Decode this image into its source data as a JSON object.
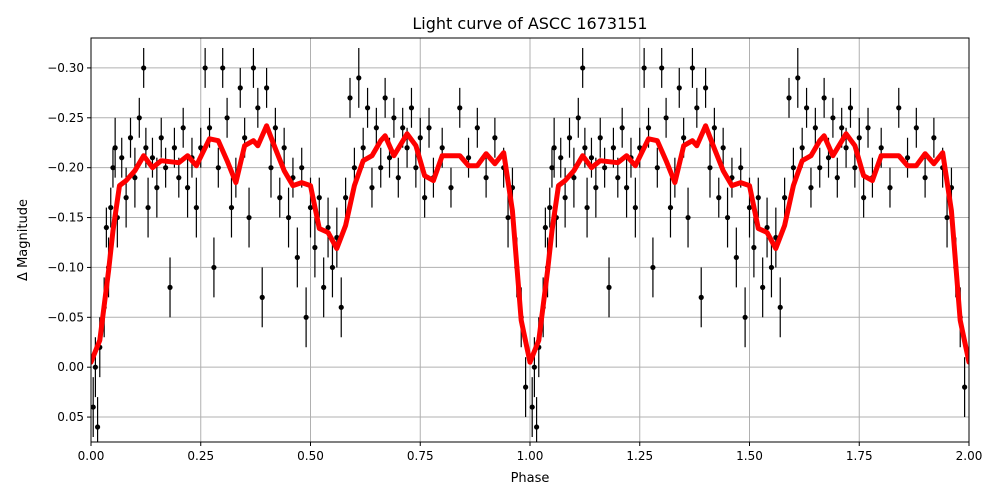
{
  "chart_data": {
    "type": "scatter",
    "title": "Light curve of ASCC 1673151",
    "xlabel": "Phase",
    "ylabel": "Δ Magnitude",
    "xlim": [
      0,
      2
    ],
    "ylim": [
      0.075,
      -0.33
    ],
    "y_inverted": true,
    "grid": true,
    "xticks": [
      0,
      0.25,
      0.5,
      0.75,
      1.0,
      1.25,
      1.5,
      1.75,
      2.0
    ],
    "xtick_labels": [
      "0.00",
      "0.25",
      "0.50",
      "0.75",
      "1.00",
      "1.25",
      "1.50",
      "1.75",
      "2.00"
    ],
    "yticks": [
      -0.3,
      -0.25,
      -0.2,
      -0.15,
      -0.1,
      -0.05,
      0.0,
      0.05
    ],
    "ytick_labels": [
      "−0.30",
      "−0.25",
      "−0.20",
      "−0.15",
      "−0.10",
      "−0.05",
      "0.00",
      "0.05"
    ],
    "colors": {
      "points": "#000000",
      "model": "#ff0000",
      "grid": "#b0b0b0"
    },
    "phase_repeated_over": [
      0,
      2
    ],
    "series": [
      {
        "kind": "errorbar-points",
        "points": [
          [
            0.005,
            0.04,
            0.03
          ],
          [
            0.01,
            0.0,
            0.03
          ],
          [
            0.015,
            0.06,
            0.03
          ],
          [
            0.02,
            -0.02,
            0.03
          ],
          [
            0.03,
            -0.06,
            0.03
          ],
          [
            0.035,
            -0.14,
            0.02
          ],
          [
            0.04,
            -0.1,
            0.03
          ],
          [
            0.045,
            -0.16,
            0.02
          ],
          [
            0.05,
            -0.2,
            0.02
          ],
          [
            0.055,
            -0.22,
            0.03
          ],
          [
            0.06,
            -0.15,
            0.03
          ],
          [
            0.07,
            -0.21,
            0.02
          ],
          [
            0.08,
            -0.17,
            0.03
          ],
          [
            0.09,
            -0.23,
            0.02
          ],
          [
            0.1,
            -0.19,
            0.03
          ],
          [
            0.11,
            -0.25,
            0.02
          ],
          [
            0.12,
            -0.3,
            0.02
          ],
          [
            0.125,
            -0.22,
            0.02
          ],
          [
            0.13,
            -0.16,
            0.03
          ],
          [
            0.14,
            -0.21,
            0.02
          ],
          [
            0.15,
            -0.18,
            0.03
          ],
          [
            0.16,
            -0.23,
            0.02
          ],
          [
            0.17,
            -0.2,
            0.02
          ],
          [
            0.18,
            -0.08,
            0.03
          ],
          [
            0.19,
            -0.22,
            0.02
          ],
          [
            0.2,
            -0.19,
            0.02
          ],
          [
            0.21,
            -0.24,
            0.02
          ],
          [
            0.22,
            -0.18,
            0.03
          ],
          [
            0.23,
            -0.21,
            0.02
          ],
          [
            0.24,
            -0.16,
            0.03
          ],
          [
            0.25,
            -0.22,
            0.02
          ],
          [
            0.26,
            -0.3,
            0.02
          ],
          [
            0.27,
            -0.24,
            0.02
          ],
          [
            0.28,
            -0.1,
            0.03
          ],
          [
            0.29,
            -0.2,
            0.02
          ],
          [
            0.3,
            -0.3,
            0.02
          ],
          [
            0.31,
            -0.25,
            0.02
          ],
          [
            0.32,
            -0.16,
            0.03
          ],
          [
            0.33,
            -0.19,
            0.02
          ],
          [
            0.34,
            -0.28,
            0.02
          ],
          [
            0.35,
            -0.23,
            0.02
          ],
          [
            0.36,
            -0.15,
            0.03
          ],
          [
            0.37,
            -0.3,
            0.02
          ],
          [
            0.38,
            -0.26,
            0.02
          ],
          [
            0.39,
            -0.07,
            0.03
          ],
          [
            0.4,
            -0.28,
            0.02
          ],
          [
            0.41,
            -0.2,
            0.03
          ],
          [
            0.42,
            -0.24,
            0.02
          ],
          [
            0.43,
            -0.17,
            0.02
          ],
          [
            0.44,
            -0.22,
            0.02
          ],
          [
            0.45,
            -0.15,
            0.03
          ],
          [
            0.46,
            -0.19,
            0.02
          ],
          [
            0.47,
            -0.11,
            0.03
          ],
          [
            0.48,
            -0.2,
            0.02
          ],
          [
            0.49,
            -0.05,
            0.03
          ],
          [
            0.5,
            -0.16,
            0.03
          ],
          [
            0.51,
            -0.12,
            0.03
          ],
          [
            0.52,
            -0.17,
            0.02
          ],
          [
            0.53,
            -0.08,
            0.03
          ],
          [
            0.54,
            -0.14,
            0.03
          ],
          [
            0.55,
            -0.1,
            0.03
          ],
          [
            0.56,
            -0.13,
            0.03
          ],
          [
            0.57,
            -0.06,
            0.03
          ],
          [
            0.58,
            -0.17,
            0.02
          ],
          [
            0.59,
            -0.27,
            0.02
          ],
          [
            0.6,
            -0.2,
            0.02
          ],
          [
            0.61,
            -0.29,
            0.03
          ],
          [
            0.62,
            -0.22,
            0.02
          ],
          [
            0.63,
            -0.26,
            0.02
          ],
          [
            0.64,
            -0.18,
            0.02
          ],
          [
            0.65,
            -0.24,
            0.02
          ],
          [
            0.66,
            -0.2,
            0.02
          ],
          [
            0.67,
            -0.27,
            0.02
          ],
          [
            0.68,
            -0.21,
            0.02
          ],
          [
            0.69,
            -0.25,
            0.02
          ],
          [
            0.7,
            -0.19,
            0.02
          ],
          [
            0.71,
            -0.24,
            0.02
          ],
          [
            0.72,
            -0.22,
            0.02
          ],
          [
            0.73,
            -0.26,
            0.02
          ],
          [
            0.74,
            -0.2,
            0.02
          ],
          [
            0.75,
            -0.23,
            0.02
          ],
          [
            0.76,
            -0.17,
            0.02
          ],
          [
            0.77,
            -0.24,
            0.02
          ],
          [
            0.78,
            -0.19,
            0.02
          ],
          [
            0.8,
            -0.22,
            0.02
          ],
          [
            0.82,
            -0.18,
            0.02
          ],
          [
            0.84,
            -0.26,
            0.02
          ],
          [
            0.86,
            -0.21,
            0.02
          ],
          [
            0.88,
            -0.24,
            0.02
          ],
          [
            0.9,
            -0.19,
            0.02
          ],
          [
            0.92,
            -0.23,
            0.02
          ],
          [
            0.94,
            -0.2,
            0.02
          ],
          [
            0.95,
            -0.15,
            0.03
          ],
          [
            0.96,
            -0.18,
            0.02
          ],
          [
            0.97,
            -0.1,
            0.03
          ],
          [
            0.98,
            -0.05,
            0.03
          ],
          [
            0.99,
            0.02,
            0.03
          ]
        ]
      },
      {
        "kind": "model-line",
        "x": [
          0.0,
          0.02,
          0.04,
          0.05,
          0.065,
          0.08,
          0.1,
          0.12,
          0.14,
          0.16,
          0.2,
          0.22,
          0.24,
          0.27,
          0.29,
          0.31,
          0.33,
          0.35,
          0.37,
          0.38,
          0.4,
          0.42,
          0.44,
          0.46,
          0.48,
          0.5,
          0.52,
          0.54,
          0.56,
          0.58,
          0.6,
          0.62,
          0.64,
          0.66,
          0.67,
          0.69,
          0.72,
          0.74,
          0.76,
          0.78,
          0.8,
          0.84,
          0.86,
          0.88,
          0.9,
          0.92,
          0.94,
          0.96,
          0.98,
          1.0
        ],
        "y": [
          -0.005,
          -0.027,
          -0.097,
          -0.137,
          -0.182,
          -0.187,
          -0.197,
          -0.212,
          -0.2,
          -0.207,
          -0.205,
          -0.212,
          -0.202,
          -0.229,
          -0.227,
          -0.207,
          -0.185,
          -0.222,
          -0.227,
          -0.222,
          -0.242,
          -0.219,
          -0.197,
          -0.182,
          -0.185,
          -0.182,
          -0.139,
          -0.135,
          -0.119,
          -0.142,
          -0.182,
          -0.207,
          -0.212,
          -0.227,
          -0.232,
          -0.212,
          -0.234,
          -0.222,
          -0.192,
          -0.187,
          -0.212,
          -0.212,
          -0.202,
          -0.202,
          -0.214,
          -0.204,
          -0.215,
          -0.157,
          -0.047,
          -0.005
        ]
      }
    ]
  }
}
